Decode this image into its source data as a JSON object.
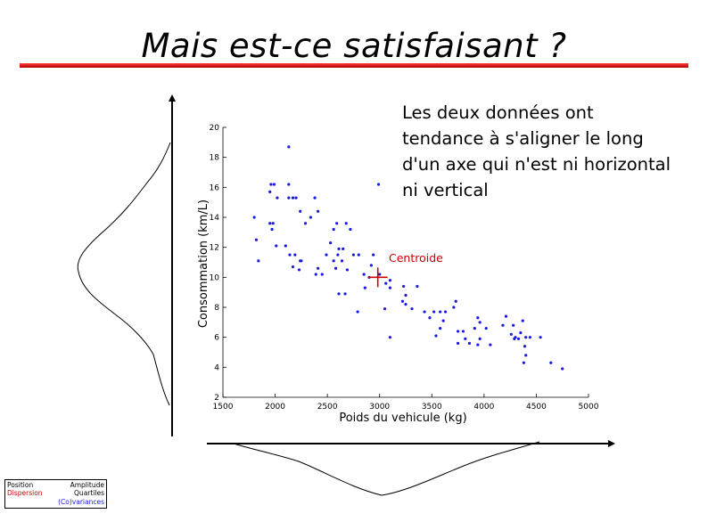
{
  "slide": {
    "title": "Mais est-ce satisfaisant ?",
    "note_lines": [
      "Les deux données ont",
      "tendance à s'aligner le long",
      "d'un axe qui n'est ni horizontal",
      "ni vertical"
    ],
    "legend": {
      "position": "Position",
      "dispersion": "Dispersion",
      "amplitude": "Amplitude",
      "quartiles": "Quartiles",
      "covariances": "(Co)variances"
    },
    "colors": {
      "accent": "#cc0000",
      "points": "#1a1adc",
      "dispersion": "#cc0000",
      "covariances": "#1a1adc"
    }
  },
  "chart_data": {
    "type": "scatter",
    "title": "",
    "xlabel": "Poids du vehicule (kg)",
    "ylabel": "Consommation (km/L)",
    "xlim": [
      1500,
      5000
    ],
    "ylim": [
      2,
      20
    ],
    "xticks": [
      1500,
      2000,
      2500,
      3000,
      3500,
      4000,
      4500,
      5000
    ],
    "yticks": [
      2,
      4,
      6,
      8,
      10,
      12,
      14,
      16,
      18,
      20
    ],
    "grid": false,
    "annotation": {
      "label": "Centroide",
      "x": 3000,
      "y": 10
    },
    "points": [
      [
        2130,
        18.7
      ],
      [
        1960,
        16.2
      ],
      [
        1990,
        16.2
      ],
      [
        2130,
        16.2
      ],
      [
        2990,
        16.2
      ],
      [
        1950,
        15.7
      ],
      [
        2020,
        15.3
      ],
      [
        2130,
        15.3
      ],
      [
        2170,
        15.3
      ],
      [
        2200,
        15.3
      ],
      [
        2380,
        15.3
      ],
      [
        2240,
        14.4
      ],
      [
        2410,
        14.4
      ],
      [
        1800,
        14.0
      ],
      [
        2340,
        14.0
      ],
      [
        1950,
        13.6
      ],
      [
        1980,
        13.6
      ],
      [
        2290,
        13.6
      ],
      [
        2590,
        13.6
      ],
      [
        2680,
        13.6
      ],
      [
        1970,
        13.2
      ],
      [
        2560,
        13.2
      ],
      [
        2720,
        13.2
      ],
      [
        1820,
        12.5
      ],
      [
        2010,
        12.1
      ],
      [
        2100,
        12.1
      ],
      [
        2530,
        12.3
      ],
      [
        2610,
        11.9
      ],
      [
        2650,
        11.9
      ],
      [
        2140,
        11.5
      ],
      [
        2190,
        11.5
      ],
      [
        2490,
        11.5
      ],
      [
        2600,
        11.5
      ],
      [
        2750,
        11.5
      ],
      [
        2800,
        11.5
      ],
      [
        2940,
        11.5
      ],
      [
        1840,
        11.1
      ],
      [
        2240,
        11.1
      ],
      [
        2250,
        11.1
      ],
      [
        2560,
        11.1
      ],
      [
        2640,
        11.1
      ],
      [
        2920,
        10.8
      ],
      [
        2170,
        10.7
      ],
      [
        2230,
        10.5
      ],
      [
        2410,
        10.6
      ],
      [
        2580,
        10.6
      ],
      [
        2690,
        10.5
      ],
      [
        2390,
        10.2
      ],
      [
        2450,
        10.2
      ],
      [
        2850,
        10.2
      ],
      [
        3000,
        10.2
      ],
      [
        2900,
        10.0
      ],
      [
        3100,
        9.8
      ],
      [
        3060,
        9.6
      ],
      [
        3230,
        9.4
      ],
      [
        3360,
        9.4
      ],
      [
        2860,
        9.3
      ],
      [
        3100,
        9.3
      ],
      [
        2610,
        8.9
      ],
      [
        2670,
        8.9
      ],
      [
        3250,
        8.8
      ],
      [
        3250,
        8.2
      ],
      [
        3220,
        8.4
      ],
      [
        3730,
        8.4
      ],
      [
        3710,
        8.0
      ],
      [
        3050,
        7.9
      ],
      [
        3310,
        7.9
      ],
      [
        3430,
        7.7
      ],
      [
        3520,
        7.7
      ],
      [
        3580,
        7.7
      ],
      [
        3630,
        7.7
      ],
      [
        2790,
        7.7
      ],
      [
        3480,
        7.3
      ],
      [
        3610,
        7.1
      ],
      [
        3960,
        7.0
      ],
      [
        3940,
        7.3
      ],
      [
        4210,
        7.4
      ],
      [
        4370,
        7.1
      ],
      [
        4280,
        6.8
      ],
      [
        3580,
        6.6
      ],
      [
        3910,
        6.6
      ],
      [
        4180,
        6.8
      ],
      [
        3750,
        6.4
      ],
      [
        3800,
        6.4
      ],
      [
        4020,
        6.6
      ],
      [
        4350,
        6.3
      ],
      [
        4260,
        6.2
      ],
      [
        4300,
        6.0
      ],
      [
        4400,
        6.0
      ],
      [
        4440,
        6.0
      ],
      [
        4540,
        6.0
      ],
      [
        4290,
        5.9
      ],
      [
        4330,
        5.9
      ],
      [
        3960,
        5.9
      ],
      [
        3540,
        6.1
      ],
      [
        3100,
        6.0
      ],
      [
        3820,
        5.9
      ],
      [
        3750,
        5.6
      ],
      [
        3860,
        5.6
      ],
      [
        3940,
        5.5
      ],
      [
        4060,
        5.5
      ],
      [
        4390,
        5.4
      ],
      [
        4400,
        4.8
      ],
      [
        4380,
        4.3
      ],
      [
        4640,
        4.3
      ],
      [
        4750,
        3.9
      ]
    ]
  }
}
